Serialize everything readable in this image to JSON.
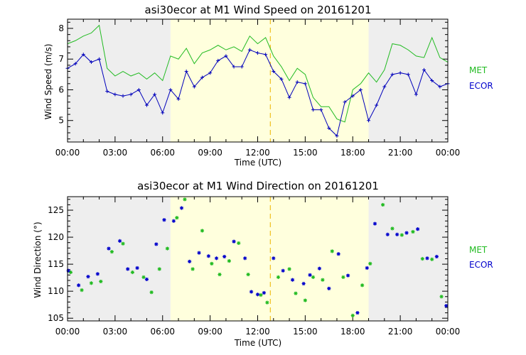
{
  "chart_data": [
    {
      "type": "line",
      "title": "asi30ecor at M1 Wind Speed on 20161201",
      "xlabel": "Time (UTC)",
      "ylabel": "Wind Speed (m/s)",
      "xlim": [
        0,
        24
      ],
      "ylim": [
        4.3,
        8.3
      ],
      "xticks": [
        0,
        3,
        6,
        9,
        12,
        15,
        18,
        21,
        24
      ],
      "xtick_labels": [
        "00:00",
        "03:00",
        "06:00",
        "09:00",
        "12:00",
        "15:00",
        "18:00",
        "21:00",
        "00:00"
      ],
      "yticks": [
        5,
        6,
        7,
        8
      ],
      "ytick_labels": [
        "5",
        "6",
        "7",
        "8"
      ],
      "night_shading_hours": [
        [
          0,
          6.5
        ],
        [
          19.0,
          24
        ]
      ],
      "day_shading_hours": [
        6.5,
        19.0
      ],
      "vline_hour": 12.8,
      "legend": [
        "MET",
        "ECOR"
      ],
      "series": [
        {
          "name": "MET",
          "color": "#22bb22",
          "marker": "none",
          "x": [
            0,
            0.5,
            1,
            1.5,
            2,
            2.5,
            3,
            3.5,
            4,
            4.5,
            5,
            5.5,
            6,
            6.5,
            7,
            7.5,
            8,
            8.5,
            9,
            9.5,
            10,
            10.5,
            11,
            11.5,
            12,
            12.5,
            13,
            13.5,
            14,
            14.5,
            15,
            15.5,
            16,
            16.5,
            17,
            17.5,
            18,
            18.5,
            19,
            19.5,
            20,
            20.5,
            21,
            21.5,
            22,
            22.5,
            23,
            23.5,
            24
          ],
          "values": [
            7.5,
            7.6,
            7.75,
            7.85,
            8.1,
            6.7,
            6.45,
            6.6,
            6.45,
            6.55,
            6.35,
            6.55,
            6.3,
            7.1,
            7.0,
            7.35,
            6.85,
            7.2,
            7.3,
            7.45,
            7.3,
            7.4,
            7.25,
            7.75,
            7.5,
            7.7,
            7.1,
            6.75,
            6.3,
            6.7,
            6.5,
            5.75,
            5.45,
            5.45,
            5.05,
            4.95,
            6.0,
            6.2,
            6.55,
            6.25,
            6.65,
            7.5,
            7.45,
            7.3,
            7.1,
            7.05,
            7.7,
            7.05,
            6.9
          ]
        },
        {
          "name": "ECOR",
          "color": "#0000bb",
          "marker": "+",
          "x": [
            0,
            0.5,
            1,
            1.5,
            2,
            2.5,
            3,
            3.5,
            4,
            4.5,
            5,
            5.5,
            6,
            6.5,
            7,
            7.5,
            8,
            8.5,
            9,
            9.5,
            10,
            10.5,
            11,
            11.5,
            12,
            12.5,
            13,
            13.5,
            14,
            14.5,
            15,
            15.5,
            16,
            16.5,
            17,
            17.5,
            18,
            18.5,
            19,
            19.5,
            20,
            20.5,
            21,
            21.5,
            22,
            22.5,
            23,
            23.5,
            24
          ],
          "values": [
            6.7,
            6.85,
            7.15,
            6.9,
            7.0,
            5.95,
            5.85,
            5.8,
            5.85,
            6.0,
            5.5,
            5.85,
            5.25,
            6.0,
            5.7,
            6.6,
            6.1,
            6.4,
            6.55,
            6.95,
            7.1,
            6.75,
            6.75,
            7.3,
            7.2,
            7.15,
            6.6,
            6.35,
            5.75,
            6.25,
            6.2,
            5.35,
            5.35,
            4.75,
            4.5,
            5.6,
            5.8,
            6.0,
            5.0,
            5.5,
            6.1,
            6.5,
            6.55,
            6.5,
            5.85,
            6.65,
            6.3,
            6.1,
            6.2
          ]
        }
      ]
    },
    {
      "type": "scatter",
      "title": "asi30ecor at M1 Wind Direction on 20161201",
      "xlabel": "Time (UTC)",
      "ylabel": "Wind Direction (°)",
      "xlim": [
        0,
        24
      ],
      "ylim": [
        104.5,
        127.5
      ],
      "xticks": [
        0,
        3,
        6,
        9,
        12,
        15,
        18,
        21,
        24
      ],
      "xtick_labels": [
        "00:00",
        "03:00",
        "06:00",
        "09:00",
        "12:00",
        "15:00",
        "18:00",
        "21:00",
        "00:00"
      ],
      "yticks": [
        105,
        110,
        115,
        120,
        125
      ],
      "ytick_labels": [
        "105",
        "110",
        "115",
        "120",
        "125"
      ],
      "night_shading_hours": [
        [
          0,
          6.5
        ],
        [
          19.0,
          24
        ]
      ],
      "day_shading_hours": [
        6.5,
        19.0
      ],
      "vline_hour": 12.8,
      "legend": [
        "MET",
        "ECOR"
      ],
      "series": [
        {
          "name": "MET",
          "color": "#22bb22",
          "marker": "*",
          "x": [
            0.2,
            0.9,
            1.5,
            2.1,
            2.8,
            3.5,
            4.1,
            4.8,
            5.3,
            5.8,
            6.3,
            6.9,
            7.4,
            7.9,
            8.5,
            9.1,
            9.6,
            10.2,
            10.8,
            11.4,
            12.2,
            12.6,
            13.3,
            14.0,
            14.4,
            15.0,
            15.5,
            16.1,
            16.7,
            17.4,
            18.0,
            18.6,
            19.1,
            19.9,
            20.5,
            21.1,
            21.8,
            22.4,
            23.0,
            23.6
          ],
          "values": [
            113.5,
            110.2,
            111.5,
            111.8,
            117.3,
            118.8,
            113.5,
            112.6,
            109.8,
            114.1,
            117.9,
            123.6,
            127.0,
            114.1,
            121.2,
            115.1,
            113.1,
            115.6,
            118.9,
            113.1,
            109.3,
            107.9,
            112.6,
            114.1,
            109.6,
            108.3,
            112.6,
            112.1,
            117.4,
            112.6,
            105.5,
            111.1,
            115.1,
            126.0,
            121.6,
            120.4,
            121.0,
            116.0,
            115.9,
            109.0
          ]
        },
        {
          "name": "ECOR",
          "color": "#0000cc",
          "marker": "*",
          "x": [
            0.05,
            0.7,
            1.3,
            1.9,
            2.6,
            3.3,
            3.8,
            4.4,
            5.0,
            5.6,
            6.1,
            6.7,
            7.2,
            7.7,
            8.3,
            8.9,
            9.4,
            9.9,
            10.5,
            11.2,
            11.6,
            12.0,
            12.4,
            13.0,
            13.6,
            14.2,
            14.9,
            15.3,
            15.9,
            16.5,
            17.1,
            17.7,
            18.3,
            18.9,
            19.4,
            20.2,
            20.8,
            21.4,
            22.1,
            22.7,
            23.3,
            23.9
          ],
          "values": [
            113.8,
            111.1,
            112.7,
            113.2,
            117.9,
            119.3,
            114.1,
            114.3,
            112.2,
            118.7,
            123.2,
            123.0,
            125.4,
            115.5,
            117.1,
            116.5,
            116.1,
            116.4,
            119.2,
            116.1,
            109.9,
            109.4,
            109.7,
            116.1,
            113.8,
            112.1,
            111.4,
            113.0,
            114.2,
            110.5,
            116.9,
            112.9,
            106.0,
            114.3,
            122.5,
            120.5,
            120.5,
            120.8,
            121.5,
            116.1,
            116.4,
            107.3
          ]
        }
      ]
    }
  ]
}
